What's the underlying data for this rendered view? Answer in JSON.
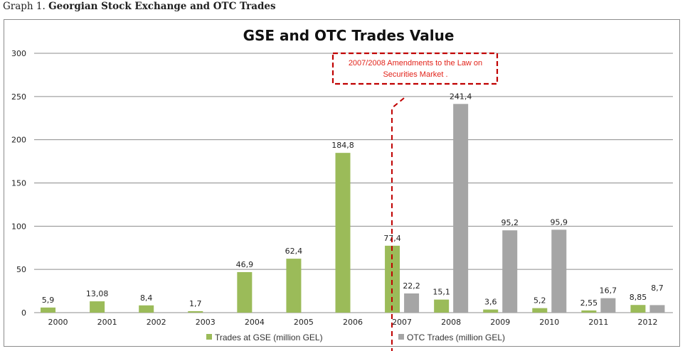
{
  "caption": {
    "prefix": "Graph 1.",
    "title": "Georgian Stock Exchange and OTC Trades"
  },
  "chart_data": {
    "type": "bar",
    "title": "GSE and OTC Trades Value",
    "xlabel": "",
    "ylabel": "",
    "ylim": [
      0,
      300
    ],
    "yticks": [
      0,
      50,
      100,
      150,
      200,
      250,
      300
    ],
    "grid": true,
    "legend_position": "bottom",
    "categories": [
      "2000",
      "2001",
      "2002",
      "2003",
      "2004",
      "2005",
      "2006",
      "2007",
      "2008",
      "2009",
      "2010",
      "2011",
      "2012"
    ],
    "series": [
      {
        "name": "Trades at GSE (million GEL)",
        "color": "#9bbb59",
        "values": [
          5.9,
          13.08,
          8.4,
          1.7,
          46.9,
          62.4,
          184.8,
          77.4,
          15.1,
          3.6,
          5.2,
          2.55,
          8.85
        ],
        "labels": [
          "5,9",
          "13,08",
          "8,4",
          "1,7",
          "46,9",
          "62,4",
          "184,8",
          "77,4",
          "15,1",
          "3,6",
          "5,2",
          "2,55",
          "8,85"
        ]
      },
      {
        "name": "OTC Trades (million GEL)",
        "color": "#a5a5a5",
        "values": [
          null,
          null,
          null,
          null,
          null,
          null,
          null,
          22.2,
          241.4,
          95.2,
          95.9,
          16.7,
          8.7
        ],
        "labels": [
          "",
          "",
          "",
          "",
          "",
          "",
          "",
          "22,2",
          "241,4",
          "95,2",
          "95,9",
          "16,7",
          "8,7"
        ]
      }
    ],
    "annotation": {
      "text_line1": "2007/2008 Amendments to the Law on",
      "text_line2": "Securities Market .",
      "color": "#c00000",
      "marker_between": [
        "2006",
        "2007"
      ]
    }
  }
}
